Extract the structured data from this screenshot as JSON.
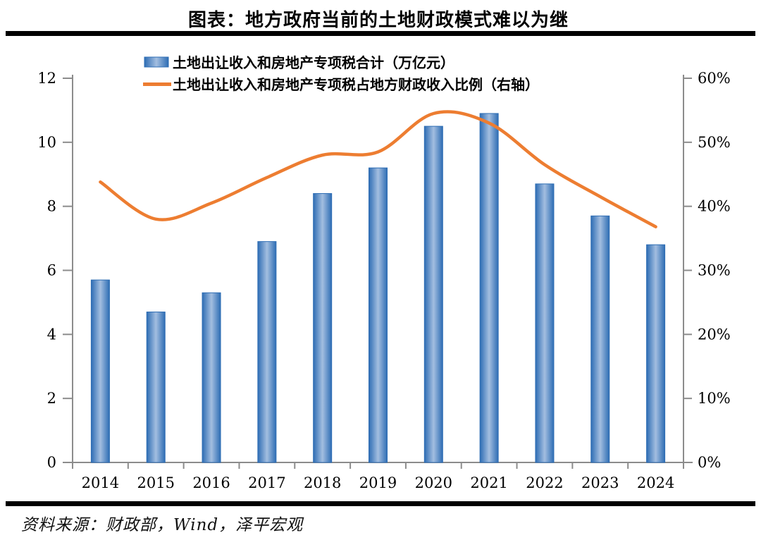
{
  "page": {
    "title": "图表：地方政府当前的土地财政模式难以为继",
    "source": "资料来源：财政部，Wind，泽平宏观"
  },
  "chart_data": {
    "type": "bar+line combo",
    "categories": [
      "2014",
      "2015",
      "2016",
      "2017",
      "2018",
      "2019",
      "2020",
      "2021",
      "2022",
      "2023",
      "2024"
    ],
    "series": [
      {
        "name": "土地出让收入和房地产专项税合计（万亿元）",
        "type": "bar",
        "axis": "left",
        "values": [
          5.7,
          4.7,
          5.3,
          6.9,
          8.4,
          9.2,
          10.5,
          10.9,
          8.7,
          7.7,
          6.8
        ]
      },
      {
        "name": "土地出让收入和房地产专项税占地方财政收入比例（右轴）",
        "type": "line",
        "axis": "right",
        "values_percent": [
          43.8,
          38.0,
          40.5,
          44.5,
          48.0,
          48.5,
          54.5,
          53.0,
          46.5,
          41.5,
          36.8
        ]
      }
    ],
    "left_axis": {
      "min": 0,
      "max": 12,
      "tick_values": [
        0,
        2,
        4,
        6,
        8,
        10,
        12
      ],
      "tick_labels": [
        "0",
        "2",
        "4",
        "6",
        "8",
        "10",
        "12"
      ]
    },
    "right_axis": {
      "min": 0,
      "max": 60,
      "tick_values": [
        0,
        10,
        20,
        30,
        40,
        50,
        60
      ],
      "tick_labels": [
        "0%",
        "10%",
        "20%",
        "30%",
        "40%",
        "50%",
        "60%"
      ]
    },
    "grid": "off",
    "legend_position": "top-center",
    "colors": {
      "bar_edge": "#2E6DB4",
      "bar_center": "#A3BEE0",
      "bar_stroke": "#2E6DB4",
      "line": "#ED7D31",
      "axis": "#8C8C8C",
      "rule": "#000000"
    }
  }
}
